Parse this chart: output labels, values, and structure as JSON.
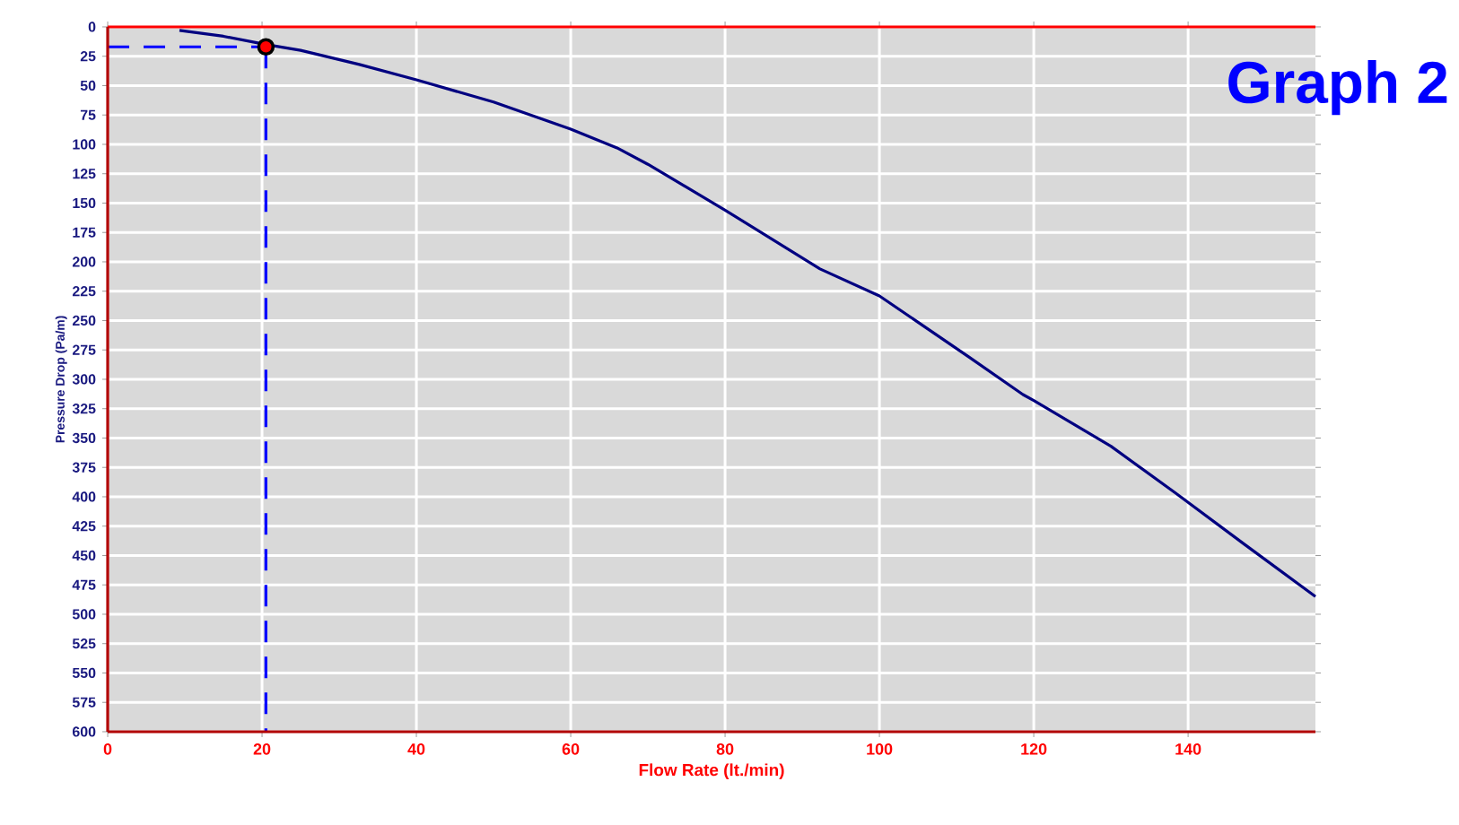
{
  "chart_data": {
    "type": "line",
    "title": "Graph 2",
    "xlabel": "Flow Rate (lt./min)",
    "ylabel": "Pressure Drop (Pa/m)",
    "xlim": [
      0,
      156.5
    ],
    "xticks": [
      0,
      20,
      40,
      60,
      80,
      100,
      120,
      140
    ],
    "ylim": [
      600,
      0
    ],
    "yticks": [
      0,
      25,
      50,
      75,
      100,
      125,
      150,
      175,
      200,
      225,
      250,
      275,
      300,
      325,
      350,
      375,
      400,
      425,
      450,
      475,
      500,
      525,
      550,
      575,
      600
    ],
    "grid": true,
    "series": [
      {
        "color": "#000080",
        "marker": "none",
        "line_style": "solid",
        "x": [
          9.3,
          15,
          20.5,
          25,
          32.6,
          40,
          50,
          60,
          66,
          70,
          80,
          92.3,
          100,
          111.6,
          118.6,
          120,
          130,
          138.4,
          147.2,
          156.5
        ],
        "values": [
          3,
          8,
          15,
          20,
          32,
          45,
          64,
          87,
          103,
          117,
          156,
          206,
          229,
          281,
          313,
          318,
          357,
          397,
          440,
          485
        ]
      },
      {
        "color": "#0000ff",
        "marker": "none",
        "line_style": "dashed",
        "x": [
          0,
          20.5
        ],
        "values": [
          17,
          17
        ]
      },
      {
        "color": "#0000ff",
        "marker": "none",
        "line_style": "dashed",
        "x": [
          20.5,
          20.5
        ],
        "values": [
          17,
          600
        ]
      },
      {
        "type": "scatter",
        "color": "#ff0000",
        "marker": "circle",
        "x": [
          20.5
        ],
        "values": [
          17
        ]
      }
    ]
  }
}
